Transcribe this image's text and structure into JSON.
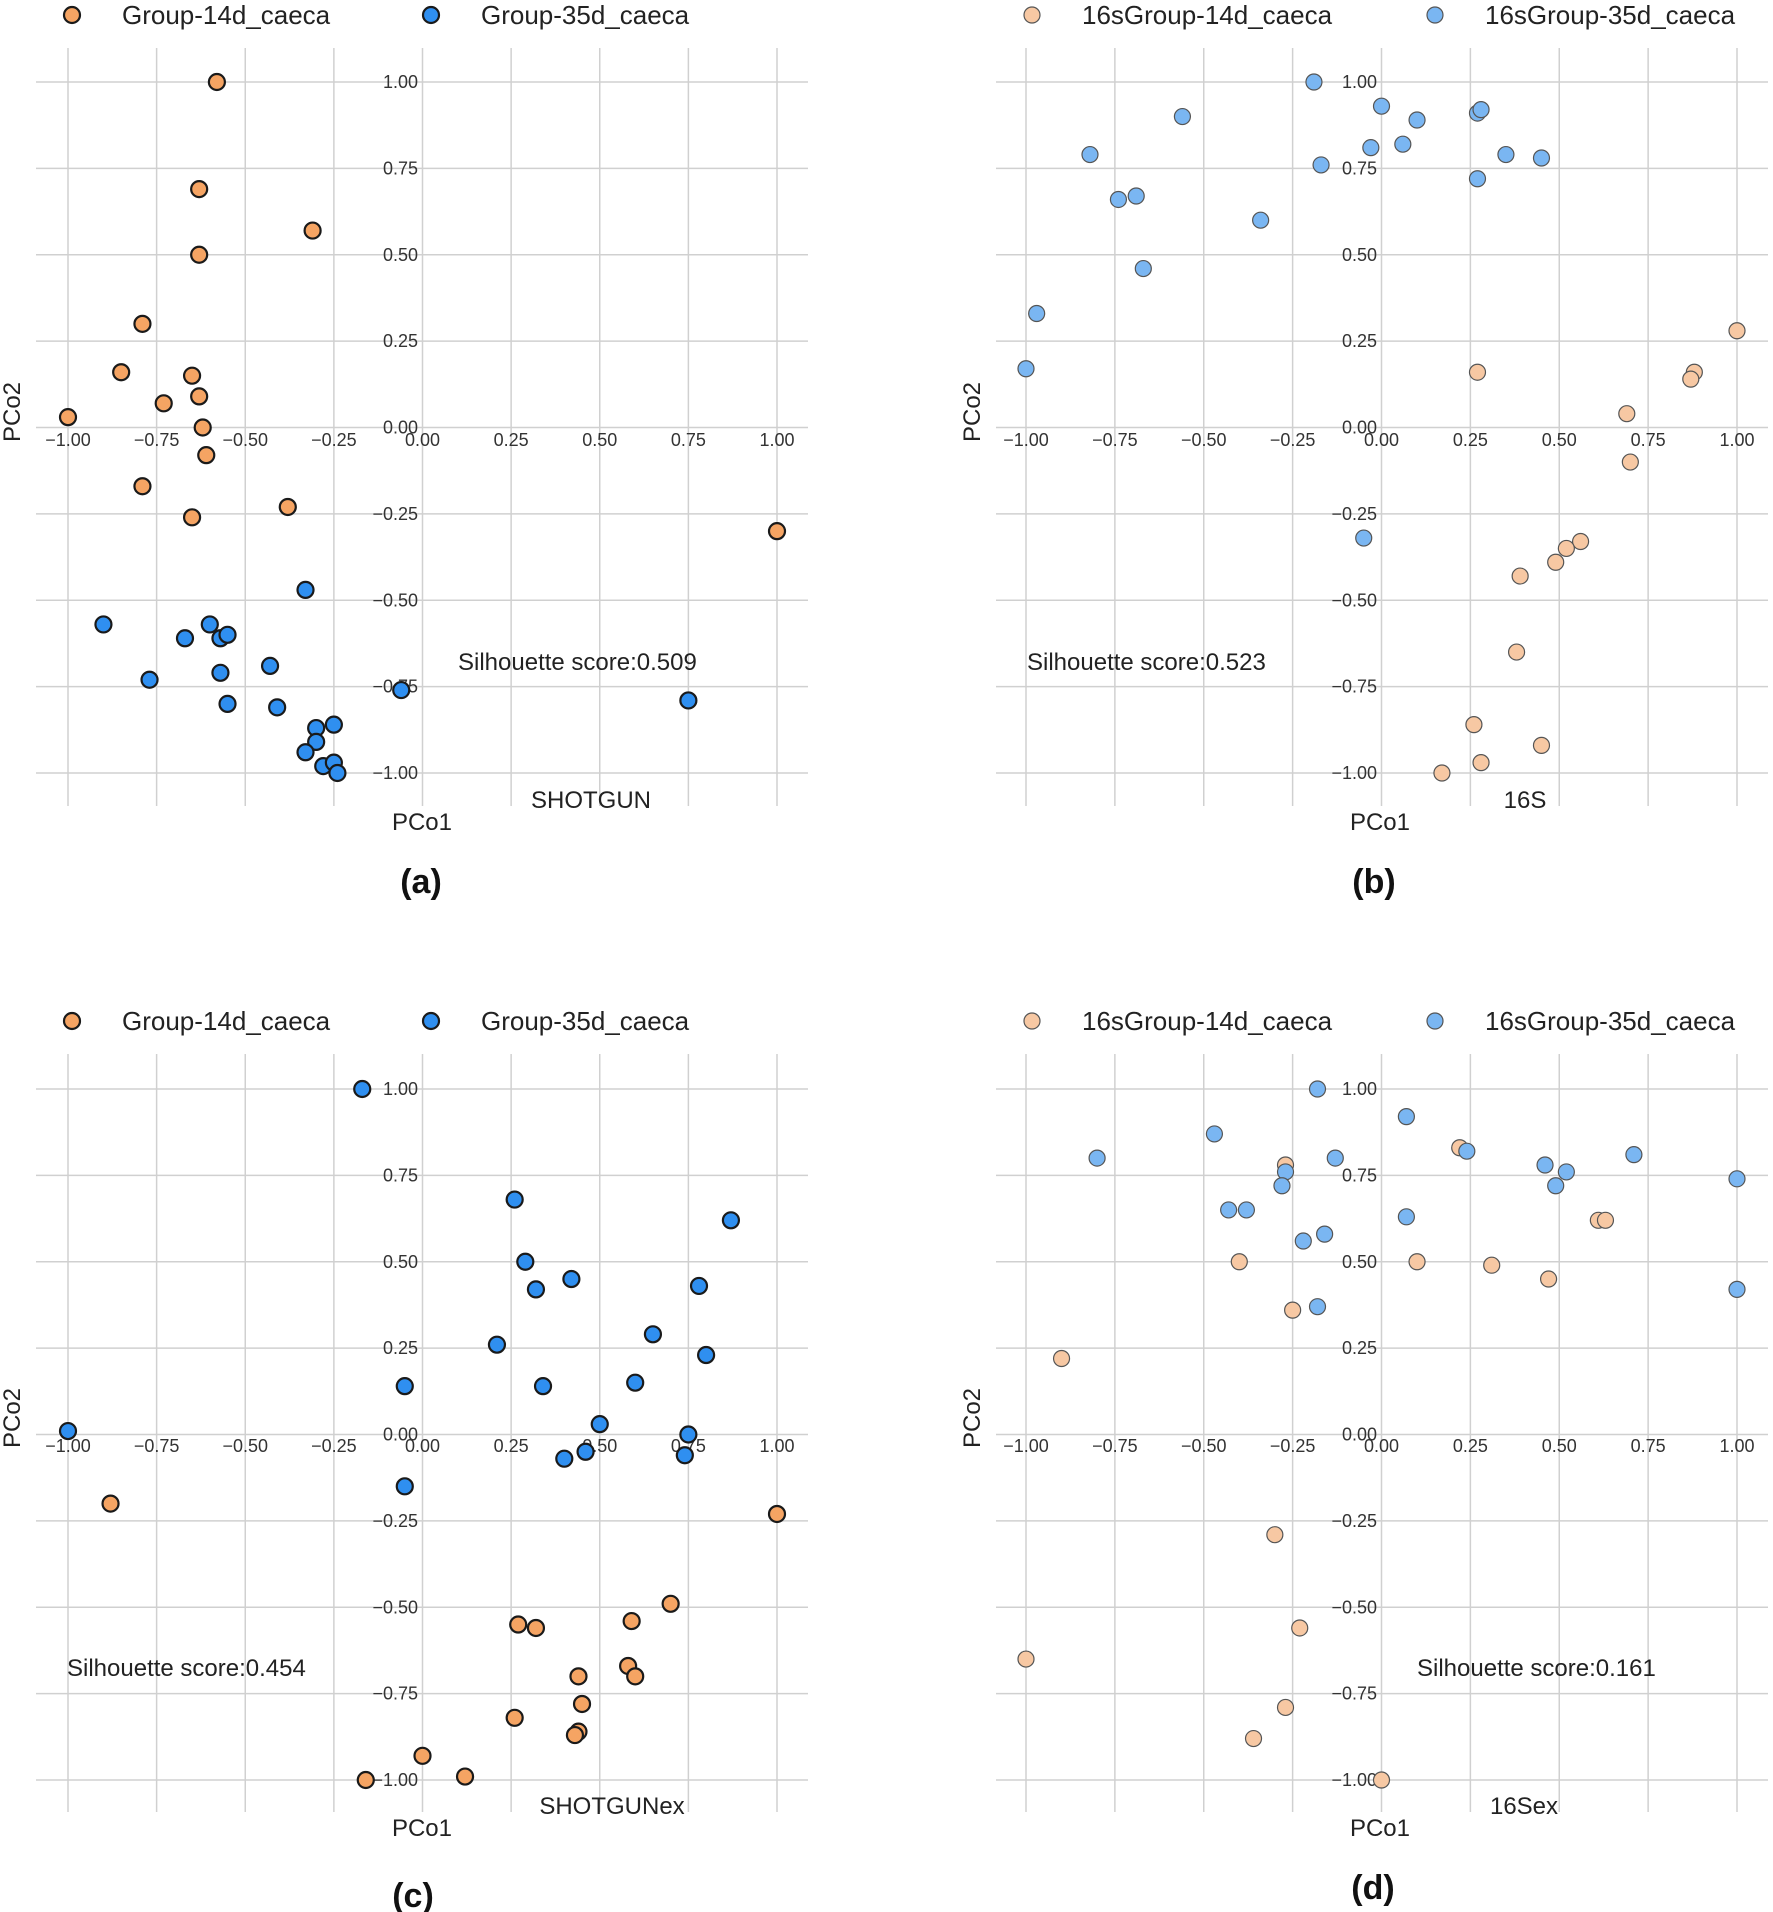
{
  "colors": {
    "orange_dark": "#f5a463",
    "blue_dark": "#2f8ff0",
    "orange_light": "#f7c8a3",
    "blue_light": "#7ab6f2",
    "grid": "#d0d0d0"
  },
  "chart_data": [
    {
      "panel": "(a)",
      "type": "scatter",
      "title": "SHOTGUN",
      "xlabel": "PCo1",
      "ylabel": "PCo2",
      "xlim": [
        -1.0,
        1.0
      ],
      "ylim": [
        -1.0,
        1.0
      ],
      "ticks": [
        "-1.00",
        "-0.75",
        "-0.50",
        "-0.25",
        "0.00",
        "0.25",
        "0.50",
        "0.75",
        "1.00"
      ],
      "annotation": "Silhouette score:0.509",
      "style": "dark",
      "series": [
        {
          "name": "Group-14d_caeca",
          "color": "#f5a463",
          "points": [
            [
              -0.58,
              1.0
            ],
            [
              -0.63,
              0.69
            ],
            [
              -0.31,
              0.57
            ],
            [
              -0.63,
              0.5
            ],
            [
              -0.79,
              0.3
            ],
            [
              -0.85,
              0.16
            ],
            [
              -0.65,
              0.15
            ],
            [
              -0.63,
              0.09
            ],
            [
              -0.73,
              0.07
            ],
            [
              -1.0,
              0.03
            ],
            [
              -0.62,
              0.0
            ],
            [
              -0.61,
              -0.08
            ],
            [
              -0.79,
              -0.17
            ],
            [
              -0.65,
              -0.26
            ],
            [
              -0.38,
              -0.23
            ],
            [
              1.0,
              -0.3
            ]
          ]
        },
        {
          "name": "Group-35d_caeca",
          "color": "#2f8ff0",
          "points": [
            [
              -0.33,
              -0.47
            ],
            [
              -0.9,
              -0.57
            ],
            [
              -0.6,
              -0.57
            ],
            [
              -0.57,
              -0.61
            ],
            [
              -0.55,
              -0.6
            ],
            [
              -0.67,
              -0.61
            ],
            [
              -0.43,
              -0.69
            ],
            [
              -0.57,
              -0.71
            ],
            [
              -0.77,
              -0.73
            ],
            [
              -0.55,
              -0.8
            ],
            [
              -0.41,
              -0.81
            ],
            [
              0.75,
              -0.79
            ],
            [
              -0.06,
              -0.76
            ],
            [
              -0.3,
              -0.87
            ],
            [
              -0.25,
              -0.86
            ],
            [
              -0.3,
              -0.91
            ],
            [
              -0.33,
              -0.94
            ],
            [
              -0.28,
              -0.98
            ],
            [
              -0.25,
              -0.97
            ],
            [
              -0.24,
              -1.0
            ]
          ]
        }
      ]
    },
    {
      "panel": "(b)",
      "type": "scatter",
      "title": "16S",
      "xlabel": "PCo1",
      "ylabel": "PCo2",
      "xlim": [
        -1.0,
        1.0
      ],
      "ylim": [
        -1.0,
        1.0
      ],
      "ticks": [
        "-1.00",
        "-0.75",
        "-0.50",
        "-0.25",
        "0.00",
        "0.25",
        "0.50",
        "0.75",
        "1.00"
      ],
      "annotation": "Silhouette score:0.523",
      "style": "light",
      "series": [
        {
          "name": "16sGroup-14d_caeca",
          "color": "#f7c8a3",
          "points": [
            [
              1.0,
              0.28
            ],
            [
              0.27,
              0.16
            ],
            [
              0.88,
              0.16
            ],
            [
              0.87,
              0.14
            ],
            [
              0.69,
              0.04
            ],
            [
              0.7,
              -0.1
            ],
            [
              0.56,
              -0.33
            ],
            [
              0.52,
              -0.35
            ],
            [
              0.49,
              -0.39
            ],
            [
              0.39,
              -0.43
            ],
            [
              0.38,
              -0.65
            ],
            [
              0.26,
              -0.86
            ],
            [
              0.45,
              -0.92
            ],
            [
              0.28,
              -0.97
            ],
            [
              0.17,
              -1.0
            ]
          ]
        },
        {
          "name": "16sGroup-35d_caeca",
          "color": "#7ab6f2",
          "points": [
            [
              -0.19,
              1.0
            ],
            [
              0.0,
              0.93
            ],
            [
              0.27,
              0.91
            ],
            [
              0.28,
              0.92
            ],
            [
              -0.56,
              0.9
            ],
            [
              0.1,
              0.89
            ],
            [
              -0.82,
              0.79
            ],
            [
              0.35,
              0.79
            ],
            [
              0.45,
              0.78
            ],
            [
              0.06,
              0.82
            ],
            [
              -0.03,
              0.81
            ],
            [
              -0.17,
              0.76
            ],
            [
              -0.74,
              0.66
            ],
            [
              -0.69,
              0.67
            ],
            [
              0.27,
              0.72
            ],
            [
              -0.34,
              0.6
            ],
            [
              -0.67,
              0.46
            ],
            [
              -0.97,
              0.33
            ],
            [
              -1.0,
              0.17
            ],
            [
              -0.05,
              -0.32
            ]
          ]
        }
      ]
    },
    {
      "panel": "(c)",
      "type": "scatter",
      "title": "SHOTGUNex",
      "xlabel": "PCo1",
      "ylabel": "PCo2",
      "xlim": [
        -1.0,
        1.0
      ],
      "ylim": [
        -1.0,
        1.0
      ],
      "ticks": [
        "-1.00",
        "-0.75",
        "-0.50",
        "-0.25",
        "0.00",
        "0.25",
        "0.50",
        "0.75",
        "1.00"
      ],
      "annotation": "Silhouette score:0.454",
      "style": "dark",
      "series": [
        {
          "name": "Group-14d_caeca",
          "color": "#f5a463",
          "points": [
            [
              -0.88,
              -0.2
            ],
            [
              1.0,
              -0.23
            ],
            [
              0.7,
              -0.49
            ],
            [
              0.59,
              -0.54
            ],
            [
              0.27,
              -0.55
            ],
            [
              0.32,
              -0.56
            ],
            [
              0.44,
              -0.7
            ],
            [
              0.58,
              -0.67
            ],
            [
              0.6,
              -0.7
            ],
            [
              0.45,
              -0.78
            ],
            [
              0.26,
              -0.82
            ],
            [
              0.44,
              -0.86
            ],
            [
              0.43,
              -0.87
            ],
            [
              0.0,
              -0.93
            ],
            [
              0.12,
              -0.99
            ],
            [
              -0.16,
              -1.0
            ]
          ]
        },
        {
          "name": "Group-35d_caeca",
          "color": "#2f8ff0",
          "points": [
            [
              -0.17,
              1.0
            ],
            [
              0.26,
              0.68
            ],
            [
              0.87,
              0.62
            ],
            [
              0.29,
              0.5
            ],
            [
              0.32,
              0.42
            ],
            [
              0.42,
              0.45
            ],
            [
              0.78,
              0.43
            ],
            [
              0.65,
              0.29
            ],
            [
              0.21,
              0.26
            ],
            [
              0.8,
              0.23
            ],
            [
              0.6,
              0.15
            ],
            [
              -0.05,
              0.14
            ],
            [
              0.34,
              0.14
            ],
            [
              0.5,
              0.03
            ],
            [
              0.75,
              0.0
            ],
            [
              -1.0,
              0.01
            ],
            [
              0.46,
              -0.05
            ],
            [
              0.4,
              -0.07
            ],
            [
              0.74,
              -0.06
            ],
            [
              -0.05,
              -0.15
            ]
          ]
        }
      ]
    },
    {
      "panel": "(d)",
      "type": "scatter",
      "title": "16Sex",
      "xlabel": "PCo1",
      "ylabel": "PCo2",
      "xlim": [
        -1.0,
        1.0
      ],
      "ylim": [
        -1.0,
        1.0
      ],
      "ticks": [
        "-1.00",
        "-0.75",
        "-0.50",
        "-0.25",
        "0.00",
        "0.25",
        "0.50",
        "0.75",
        "1.00"
      ],
      "annotation": "Silhouette score:0.161",
      "style": "light",
      "series": [
        {
          "name": "16sGroup-14d_caeca",
          "color": "#f7c8a3",
          "points": [
            [
              0.22,
              0.83
            ],
            [
              -0.27,
              0.78
            ],
            [
              0.61,
              0.62
            ],
            [
              0.63,
              0.62
            ],
            [
              -0.4,
              0.5
            ],
            [
              0.1,
              0.5
            ],
            [
              0.31,
              0.49
            ],
            [
              0.47,
              0.45
            ],
            [
              -0.25,
              0.36
            ],
            [
              -0.9,
              0.22
            ],
            [
              -0.3,
              -0.29
            ],
            [
              -0.23,
              -0.56
            ],
            [
              -1.0,
              -0.65
            ],
            [
              -0.27,
              -0.79
            ],
            [
              -0.36,
              -0.88
            ],
            [
              0.0,
              -1.0
            ]
          ]
        },
        {
          "name": "16sGroup-35d_caeca",
          "color": "#7ab6f2",
          "points": [
            [
              -0.18,
              1.0
            ],
            [
              0.07,
              0.92
            ],
            [
              -0.47,
              0.87
            ],
            [
              0.24,
              0.82
            ],
            [
              0.71,
              0.81
            ],
            [
              -0.8,
              0.8
            ],
            [
              -0.13,
              0.8
            ],
            [
              0.46,
              0.78
            ],
            [
              -0.27,
              0.76
            ],
            [
              0.52,
              0.76
            ],
            [
              -0.28,
              0.72
            ],
            [
              1.0,
              0.74
            ],
            [
              0.49,
              0.72
            ],
            [
              -0.43,
              0.65
            ],
            [
              -0.38,
              0.65
            ],
            [
              0.07,
              0.63
            ],
            [
              -0.16,
              0.58
            ],
            [
              -0.22,
              0.56
            ],
            [
              1.0,
              0.42
            ],
            [
              -0.18,
              0.37
            ]
          ]
        }
      ]
    }
  ]
}
